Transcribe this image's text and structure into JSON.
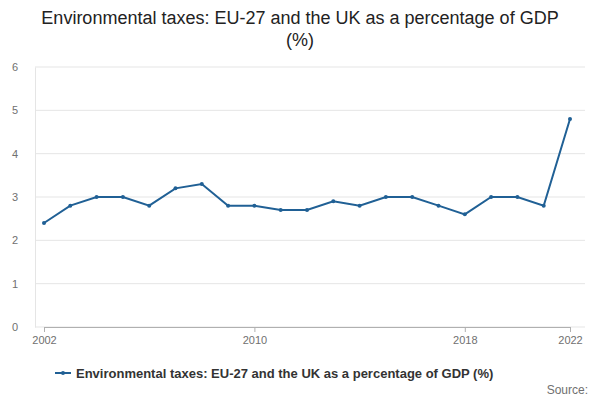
{
  "chart_data": {
    "type": "line",
    "title": "Environmental taxes: EU-27 and the UK as a percentage of GDP (%)",
    "source": "Source:",
    "x": [
      2002,
      2003,
      2004,
      2005,
      2006,
      2007,
      2008,
      2009,
      2010,
      2011,
      2012,
      2013,
      2014,
      2015,
      2016,
      2017,
      2018,
      2019,
      2020,
      2021,
      2022
    ],
    "series": [
      {
        "name": "Environmental taxes: EU-27 and the UK as a percentage of GDP (%)",
        "color": "#206095",
        "marker": "circle",
        "line_style": "solid",
        "values": [
          2.4,
          2.8,
          3.0,
          3.0,
          2.8,
          3.2,
          3.3,
          2.8,
          2.8,
          2.7,
          2.7,
          2.9,
          2.8,
          3.0,
          3.0,
          2.8,
          2.6,
          3.0,
          3.0,
          2.8,
          4.8
        ]
      }
    ],
    "xlim": [
      2002,
      2022
    ],
    "xticks": [
      2002,
      2010,
      2018,
      2022
    ],
    "ylim": [
      0,
      6
    ],
    "yticks": [
      0,
      1,
      2,
      3,
      4,
      5,
      6
    ],
    "grid": true,
    "legend": "bottom"
  }
}
